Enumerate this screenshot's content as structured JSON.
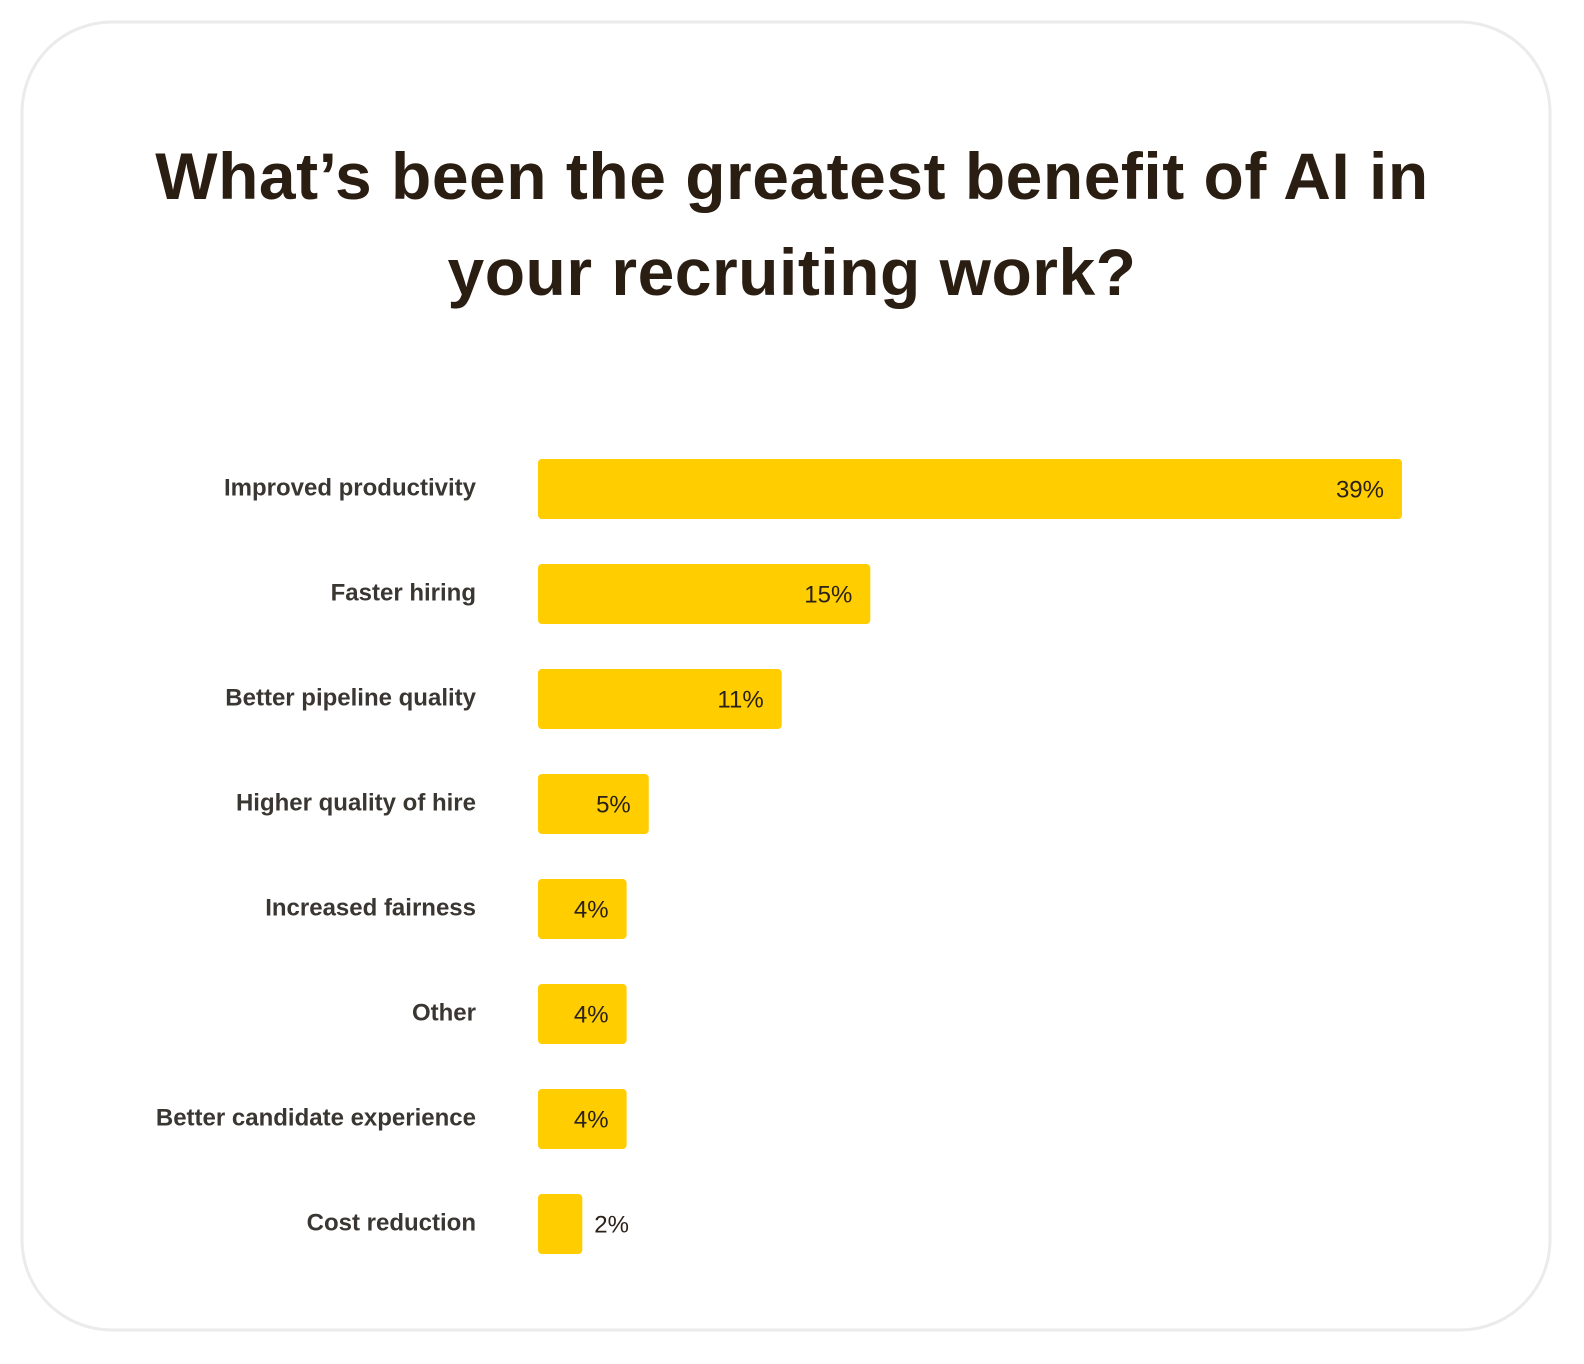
{
  "chart_data": {
    "type": "bar",
    "orientation": "horizontal",
    "title": "What’s been the greatest benefit of AI in your recruiting work?",
    "categories": [
      "Improved productivity",
      "Faster hiring",
      "Better pipeline quality",
      "Higher quality of hire",
      "Increased fairness",
      "Other",
      "Better candidate experience",
      "Cost reduction"
    ],
    "values": [
      39,
      15,
      11,
      5,
      4,
      4,
      4,
      2
    ],
    "value_labels": [
      "39%",
      "15%",
      "11%",
      "5%",
      "4%",
      "4%",
      "4%",
      "2%"
    ],
    "color": "#ffcd00"
  }
}
